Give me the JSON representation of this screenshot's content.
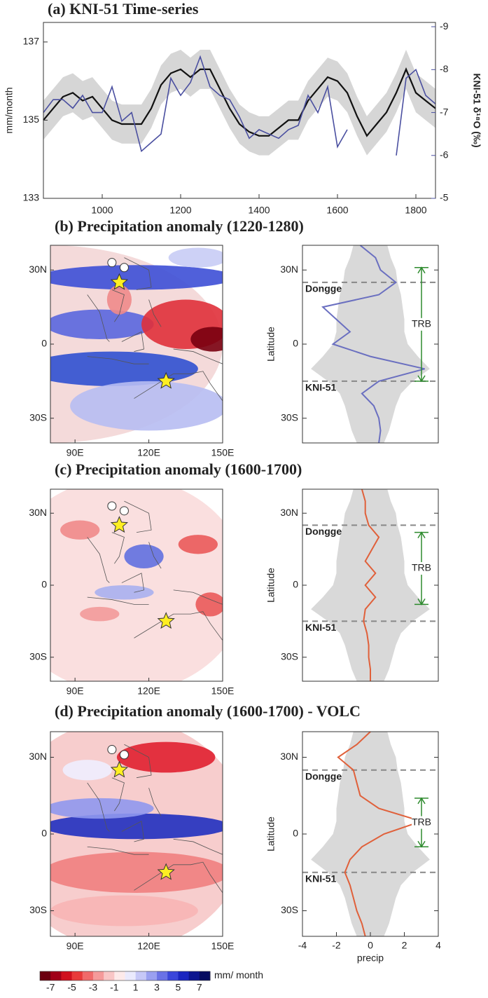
{
  "chart_data": [
    {
      "type": "line",
      "title": "(a) KNI-51 Time-series",
      "y_label": "mm/month",
      "y2_label": "KNI-51 δ¹⁸O (‰)",
      "x": [
        850,
        875,
        900,
        925,
        950,
        975,
        1000,
        1025,
        1050,
        1075,
        1100,
        1125,
        1150,
        1175,
        1200,
        1225,
        1250,
        1275,
        1300,
        1325,
        1350,
        1375,
        1400,
        1425,
        1450,
        1475,
        1500,
        1525,
        1550,
        1575,
        1600,
        1625,
        1650,
        1675,
        1700,
        1725,
        1750,
        1775,
        1800,
        1825,
        1850
      ],
      "xlim": [
        850,
        1850
      ],
      "xticks": [
        1000,
        1200,
        1400,
        1600,
        1800
      ],
      "ylim": [
        133,
        137.5
      ],
      "yticks": [
        133,
        135,
        137
      ],
      "y2lim": [
        -5,
        -9.1
      ],
      "y2ticks": [
        -5,
        -6,
        -7,
        -8,
        -9
      ],
      "band": {
        "color": "#d6d6d6",
        "lower": [
          134.5,
          134.8,
          135.1,
          135.2,
          135.0,
          135.1,
          134.8,
          134.5,
          134.4,
          134.4,
          134.4,
          134.8,
          135.4,
          135.7,
          135.8,
          135.6,
          135.8,
          135.8,
          135.3,
          134.8,
          134.4,
          134.2,
          134.1,
          134.1,
          134.3,
          134.5,
          134.5,
          135.0,
          135.3,
          135.6,
          135.5,
          135.2,
          134.6,
          134.1,
          134.4,
          134.7,
          135.2,
          135.8,
          135.2,
          135.0,
          134.8
        ],
        "upper": [
          135.5,
          135.8,
          136.1,
          136.2,
          136.0,
          136.1,
          135.8,
          135.5,
          135.4,
          135.4,
          135.4,
          135.8,
          136.4,
          136.7,
          136.8,
          136.6,
          136.8,
          136.8,
          136.3,
          135.8,
          135.4,
          135.2,
          135.1,
          135.1,
          135.3,
          135.5,
          135.5,
          136.0,
          136.3,
          136.6,
          136.5,
          136.2,
          135.6,
          135.1,
          135.4,
          135.7,
          136.2,
          136.8,
          136.2,
          136.0,
          135.8
        ]
      },
      "series": [
        {
          "color": "#111111",
          "values": [
            135.0,
            135.3,
            135.6,
            135.7,
            135.5,
            135.6,
            135.3,
            135.0,
            134.9,
            134.9,
            134.9,
            135.3,
            135.9,
            136.2,
            136.3,
            136.1,
            136.3,
            136.3,
            135.8,
            135.3,
            134.9,
            134.7,
            134.6,
            134.6,
            134.8,
            135.0,
            135.0,
            135.5,
            135.8,
            136.1,
            136.0,
            135.7,
            135.1,
            134.6,
            134.9,
            135.2,
            135.7,
            136.3,
            135.7,
            135.5,
            135.3
          ]
        },
        {
          "color": "#4a4fa0",
          "axis": "y2",
          "values": [
            -7.0,
            -7.3,
            -7.3,
            -7.1,
            -7.4,
            -7.0,
            -7.0,
            -7.6,
            -6.8,
            -7.0,
            -6.1,
            -6.3,
            -6.5,
            -7.8,
            -7.4,
            -7.7,
            -8.3,
            -7.6,
            -7.4,
            -7.3,
            -6.9,
            -6.4,
            -6.6,
            -6.5,
            -6.4,
            -6.6,
            -6.7,
            -7.4,
            -7.0,
            -7.6,
            -6.2,
            -6.6,
            null,
            null,
            null,
            null,
            -6.0,
            -7.8,
            -8.0,
            -7.4,
            -7.2
          ]
        }
      ]
    },
    {
      "type": "map",
      "title": "(b) Precipitation anomaly (1220-1280)",
      "xlim": [
        80,
        150
      ],
      "ylim": [
        -40,
        40
      ],
      "xticks": [
        {
          "value": 90,
          "label": "90E"
        },
        {
          "value": 120,
          "label": "120E"
        },
        {
          "value": 150,
          "label": "150E"
        }
      ],
      "yticks": [
        {
          "value": 30,
          "label": "30N"
        },
        0,
        {
          "value": -30,
          "label": "30S"
        }
      ],
      "points": [
        {
          "lon": 105,
          "lat": 33,
          "marker": "circle"
        },
        {
          "lon": 110,
          "lat": 31,
          "marker": "circle"
        },
        {
          "lon": 108,
          "lat": 25,
          "marker": "star"
        },
        {
          "lon": 127,
          "lat": -15,
          "marker": "star"
        }
      ]
    },
    {
      "type": "profile",
      "y_label": "Latitude",
      "lat": [
        40,
        35,
        30,
        25,
        20,
        15,
        10,
        5,
        0,
        -5,
        -10,
        -15,
        -20,
        -25,
        -30,
        -35,
        -40
      ],
      "xlim": [
        -4,
        4
      ],
      "ylim": [
        -40,
        40
      ],
      "yticks": [
        {
          "value": 30,
          "label": "30N"
        },
        0,
        {
          "value": -30,
          "label": "30S"
        }
      ],
      "envelope": {
        "color": "#d9d9d9",
        "lower": [
          -1.0,
          -1.2,
          -1.5,
          -1.6,
          -1.8,
          -1.9,
          -2.0,
          -2.0,
          -2.2,
          -2.8,
          -3.5,
          -2.5,
          -1.8,
          -1.5,
          -1.3,
          -1.1,
          -0.8
        ],
        "upper": [
          1.0,
          1.2,
          1.5,
          1.6,
          1.8,
          1.9,
          2.0,
          2.0,
          2.2,
          2.8,
          3.5,
          2.5,
          1.8,
          1.5,
          1.3,
          1.1,
          0.8
        ]
      },
      "series": [
        {
          "color": "#6a6fc0",
          "values": [
            -0.6,
            0.3,
            0.6,
            1.5,
            0.5,
            -2.8,
            -2.0,
            -1.2,
            -2.2,
            0.0,
            3.2,
            0.5,
            -0.5,
            0.2,
            0.5,
            0.6,
            0.5
          ]
        }
      ],
      "lines": [
        {
          "text": "Dongge",
          "lat": 25
        },
        {
          "text": "KNI-51",
          "lat": -15
        }
      ],
      "arrow": {
        "text": "TRB",
        "color": "#2e8b2e",
        "range": [
          31,
          -15
        ]
      }
    },
    {
      "type": "map",
      "title": "(c) Precipitation anomaly (1600-1700)",
      "xlim": [
        80,
        150
      ],
      "ylim": [
        -40,
        40
      ],
      "xticks": [
        {
          "value": 90,
          "label": "90E"
        },
        {
          "value": 120,
          "label": "120E"
        },
        {
          "value": 150,
          "label": "150E"
        }
      ],
      "yticks": [
        {
          "value": 30,
          "label": "30N"
        },
        0,
        {
          "value": -30,
          "label": "30S"
        }
      ],
      "points": [
        {
          "lon": 105,
          "lat": 33,
          "marker": "circle"
        },
        {
          "lon": 110,
          "lat": 31,
          "marker": "circle"
        },
        {
          "lon": 108,
          "lat": 25,
          "marker": "star"
        },
        {
          "lon": 127,
          "lat": -15,
          "marker": "star"
        }
      ]
    },
    {
      "type": "profile",
      "y_label": "Latitude",
      "lat": [
        40,
        35,
        30,
        25,
        20,
        15,
        10,
        5,
        0,
        -5,
        -10,
        -15,
        -20,
        -25,
        -30,
        -35,
        -40
      ],
      "xlim": [
        -4,
        4
      ],
      "ylim": [
        -40,
        40
      ],
      "yticks": [
        {
          "value": 30,
          "label": "30N"
        },
        0,
        {
          "value": -30,
          "label": "30S"
        }
      ],
      "envelope": {
        "color": "#d9d9d9",
        "lower": [
          -1.0,
          -1.2,
          -1.5,
          -1.6,
          -1.8,
          -1.9,
          -2.0,
          -2.0,
          -2.2,
          -2.8,
          -3.5,
          -2.5,
          -1.8,
          -1.5,
          -1.3,
          -1.1,
          -0.8
        ],
        "upper": [
          1.0,
          1.2,
          1.5,
          1.6,
          1.8,
          1.9,
          2.0,
          2.0,
          2.2,
          2.8,
          3.5,
          2.5,
          1.8,
          1.5,
          1.3,
          1.1,
          0.8
        ]
      },
      "series": [
        {
          "color": "#e0603a",
          "values": [
            -0.5,
            -0.3,
            -0.3,
            -0.1,
            0.5,
            0.1,
            -0.3,
            0.3,
            -0.3,
            0.3,
            -0.3,
            -0.4,
            -0.2,
            -0.1,
            -0.1,
            0,
            0
          ]
        }
      ],
      "lines": [
        {
          "text": "Dongge",
          "lat": 25
        },
        {
          "text": "KNI-51",
          "lat": -15
        }
      ],
      "arrow": {
        "text": "TRB",
        "color": "#2e8b2e",
        "range": [
          22,
          -8
        ]
      }
    },
    {
      "type": "map",
      "title": "(d) Precipitation anomaly (1600-1700) - VOLC",
      "xlim": [
        80,
        150
      ],
      "ylim": [
        -40,
        40
      ],
      "xticks": [
        {
          "value": 90,
          "label": "90E"
        },
        {
          "value": 120,
          "label": "120E"
        },
        {
          "value": 150,
          "label": "150E"
        }
      ],
      "yticks": [
        {
          "value": 30,
          "label": "30N"
        },
        0,
        {
          "value": -30,
          "label": "30S"
        }
      ],
      "points": [
        {
          "lon": 105,
          "lat": 33,
          "marker": "circle"
        },
        {
          "lon": 110,
          "lat": 31,
          "marker": "circle"
        },
        {
          "lon": 108,
          "lat": 25,
          "marker": "star"
        },
        {
          "lon": 127,
          "lat": -15,
          "marker": "star"
        }
      ]
    },
    {
      "type": "profile",
      "y_label": "Latitude",
      "x_label": "precip",
      "lat": [
        40,
        35,
        30,
        25,
        20,
        15,
        10,
        5,
        0,
        -5,
        -10,
        -15,
        -20,
        -25,
        -30,
        -35,
        -40
      ],
      "xlim": [
        -4,
        4
      ],
      "xticks": [
        -4,
        -2,
        0,
        2,
        4
      ],
      "ylim": [
        -40,
        40
      ],
      "yticks": [
        {
          "value": 30,
          "label": "30N"
        },
        0,
        {
          "value": -30,
          "label": "30S"
        }
      ],
      "envelope": {
        "color": "#d9d9d9",
        "lower": [
          -1.0,
          -1.2,
          -1.5,
          -1.6,
          -1.8,
          -1.9,
          -2.0,
          -2.0,
          -2.2,
          -2.8,
          -3.5,
          -2.5,
          -1.8,
          -1.5,
          -1.3,
          -1.1,
          -0.8
        ],
        "upper": [
          1.0,
          1.2,
          1.5,
          1.6,
          1.8,
          1.9,
          2.0,
          2.0,
          2.2,
          2.8,
          3.5,
          2.5,
          1.8,
          1.5,
          1.3,
          1.1,
          0.8
        ]
      },
      "series": [
        {
          "color": "#e0603a",
          "values": [
            0,
            -0.8,
            -1.9,
            -1.0,
            -0.8,
            -0.6,
            0.5,
            3.0,
            0.8,
            -0.5,
            -1.2,
            -1.5,
            -1.2,
            -1.0,
            -0.8,
            -0.5,
            -0.3
          ]
        }
      ],
      "lines": [
        {
          "text": "Dongge",
          "lat": 25
        },
        {
          "text": "KNI-51",
          "lat": -15
        }
      ],
      "arrow": {
        "text": "TRB",
        "color": "#2e8b2e",
        "range": [
          14,
          -5
        ]
      }
    },
    {
      "type": "colorbar",
      "label": "mm/ month",
      "lim": [
        -8,
        8
      ],
      "ticks": [
        -7,
        -5,
        -3,
        -1,
        1,
        3,
        5,
        7
      ],
      "colors": [
        "#6b0010",
        "#a00018",
        "#d0101e",
        "#e83a3a",
        "#f06a6a",
        "#f59a9a",
        "#f9c6c6",
        "#fdeaea",
        "#eaeafd",
        "#c6c8f7",
        "#9aa0f0",
        "#6a72e6",
        "#3a46da",
        "#1a26c0",
        "#0c168f",
        "#060c60"
      ]
    }
  ]
}
